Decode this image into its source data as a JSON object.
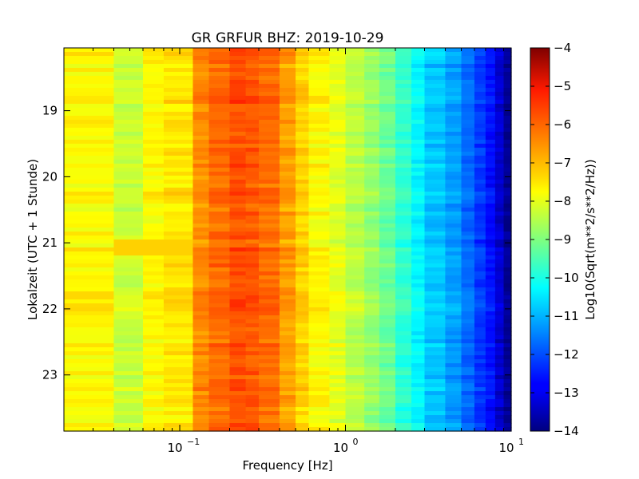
{
  "chart_data": {
    "type": "heatmap",
    "title": "GR GRFUR BHZ: 2019-10-29",
    "xlabel": "Frequency [Hz]",
    "ylabel": "Lokalzeit (UTC + 1 Stunde)",
    "x_scale": "log",
    "xlim": [
      0.02,
      10
    ],
    "x_ticks": [
      {
        "value": 0.1,
        "base": "10",
        "exp": "−1"
      },
      {
        "value": 1,
        "base": "10",
        "exp": "0"
      },
      {
        "value": 10,
        "base": "10",
        "exp": "1"
      }
    ],
    "ylim": [
      18.05,
      23.85
    ],
    "y_inverted": true,
    "y_ticks": [
      19,
      20,
      21,
      22,
      23
    ],
    "grid": false,
    "colorbar": {
      "label": "Log10(Sqrt(m**2/s**2/Hz))",
      "colormap": "jet",
      "range": [
        -14,
        -4
      ],
      "ticks": [
        -4,
        -5,
        -6,
        -7,
        -8,
        -9,
        -10,
        -11,
        -12,
        -13,
        -14
      ]
    },
    "frequency_bins_hz": [
      0.02,
      0.04,
      0.06,
      0.08,
      0.12,
      0.15,
      0.2,
      0.25,
      0.3,
      0.4,
      0.5,
      0.6,
      0.8,
      1.0,
      1.3,
      1.6,
      2.0,
      2.5,
      3.0,
      4.0,
      5.0,
      6.0,
      7.0,
      8.0,
      9.0,
      10.0
    ],
    "mean_log10_amplitude": [
      -7.7,
      -8.3,
      -7.7,
      -7.5,
      -6.6,
      -6.3,
      -6.0,
      -6.1,
      -6.3,
      -6.8,
      -7.3,
      -7.7,
      -8.0,
      -8.4,
      -8.8,
      -9.2,
      -9.8,
      -10.3,
      -10.8,
      -11.2,
      -11.7,
      -12.2,
      -12.6,
      -13.2,
      -13.8,
      -14.0
    ],
    "time_windows": [
      {
        "from": 20.9,
        "to": 21.15,
        "f_from": 0.04,
        "f_to": 0.12,
        "value": -7.3,
        "note": "brief low-frequency increase near 21:00"
      }
    ]
  }
}
